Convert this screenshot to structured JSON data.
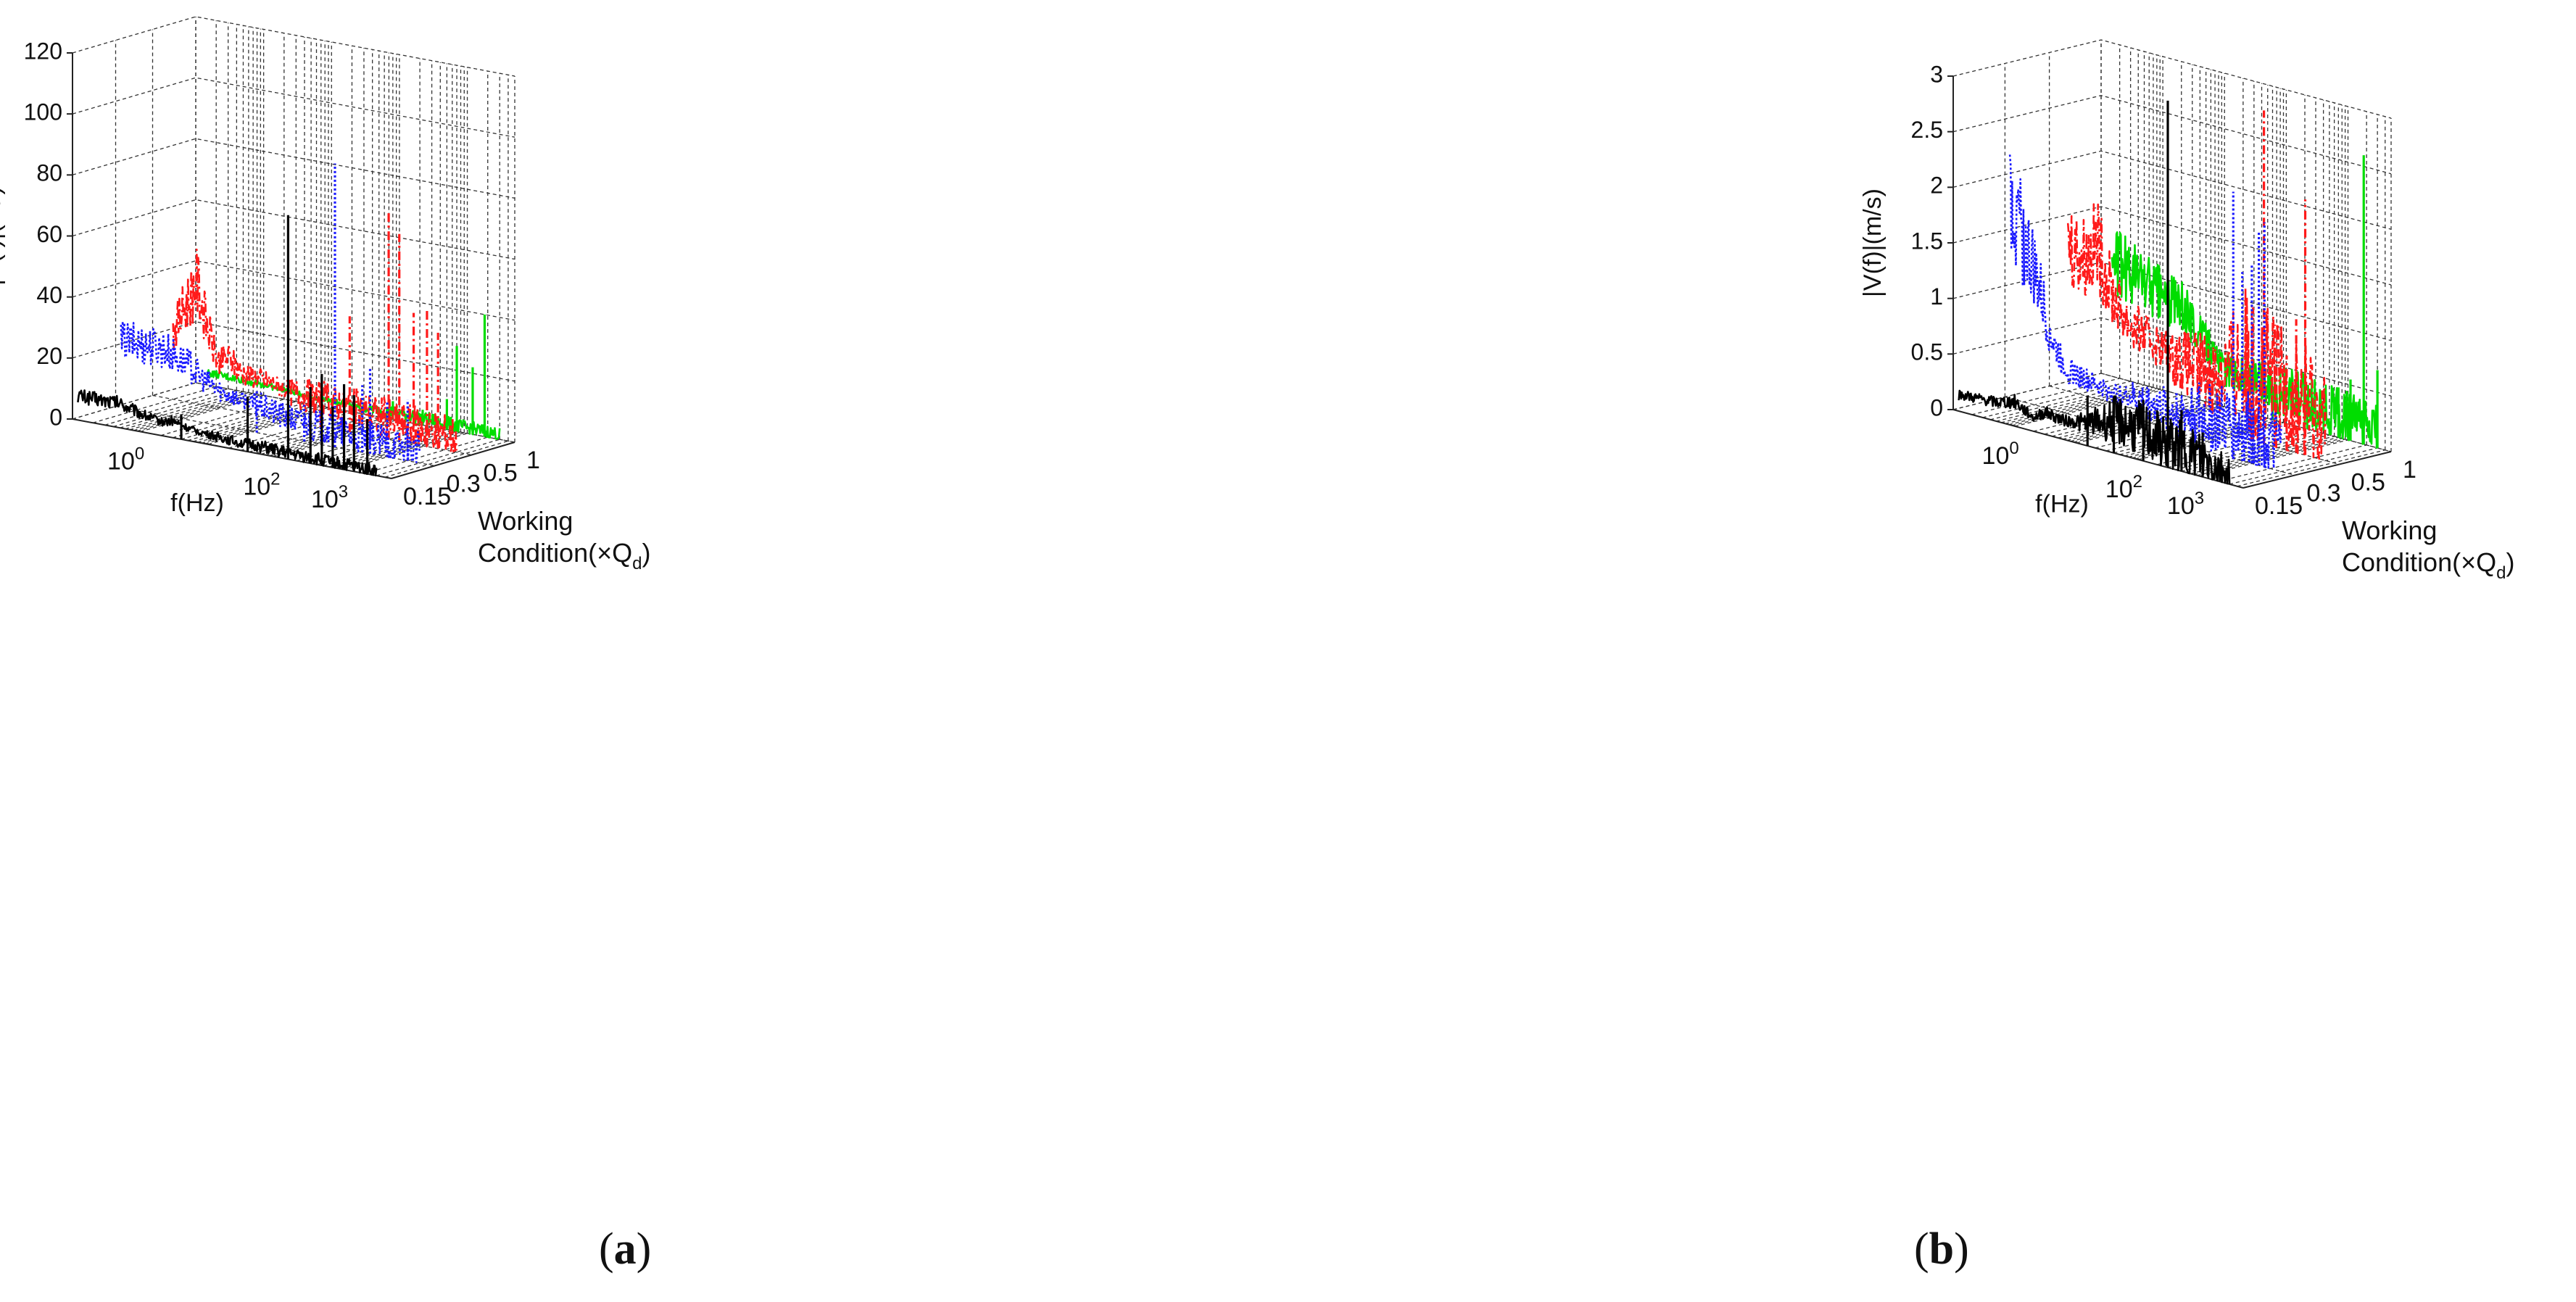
{
  "chart_data": [
    {
      "id": "a",
      "type": "line3d-waterfall",
      "caption": "a",
      "zlabel": "|P(f)|(Pa)",
      "xlabel": "f(Hz)",
      "ylabel": "Working Condition(×Q_d)",
      "ylabel_line1": "Working",
      "ylabel_line2": "Condition(×Q",
      "ylabel_sub": "d",
      "ylabel_close": ")",
      "zlim": [
        0,
        120
      ],
      "zticks": [
        "0",
        "20",
        "40",
        "60",
        "80",
        "100",
        "120"
      ],
      "xscale": "log",
      "xlim": [
        0.1,
        5000
      ],
      "xtick_base": "10",
      "xtick_exps": [
        "0",
        "2",
        "3"
      ],
      "yticks": [
        "0.15",
        "0.3",
        "0.5",
        "1"
      ],
      "series": [
        {
          "name": "0.15",
          "color": "#000000",
          "style": "solid",
          "low": [
            [
              0.12,
              8
            ],
            [
              0.5,
              8
            ],
            [
              1,
              6
            ],
            [
              2,
              4.5
            ],
            [
              3,
              5.5
            ],
            [
              5,
              4
            ],
            [
              8,
              3.5
            ],
            [
              15,
              3
            ],
            [
              30,
              2.5
            ],
            [
              60,
              2.5
            ],
            [
              150,
              2
            ],
            [
              500,
              1.8
            ],
            [
              3000,
              1.5
            ]
          ],
          "peaks": [
            [
              4,
              8
            ],
            [
              38,
              18
            ],
            [
              150,
              80
            ],
            [
              320,
              25
            ],
            [
              470,
              30
            ],
            [
              680,
              20
            ],
            [
              1000,
              28
            ],
            [
              1400,
              25
            ],
            [
              2200,
              18
            ]
          ]
        },
        {
          "name": "0.3",
          "color": "#1a1aff",
          "style": "dotted",
          "low": [
            [
              0.12,
              22
            ],
            [
              0.5,
              22
            ],
            [
              1.2,
              18
            ],
            [
              2,
              14
            ],
            [
              3,
              12
            ],
            [
              6,
              10
            ],
            [
              12,
              9
            ],
            [
              30,
              7
            ],
            [
              80,
              6
            ],
            [
              300,
              5
            ],
            [
              3000,
              4
            ]
          ],
          "peaks": [
            [
              12,
              14
            ],
            [
              60,
              12
            ],
            [
              170,
              93
            ],
            [
              430,
              22
            ],
            [
              560,
              28
            ],
            [
              1000,
              18
            ],
            [
              2000,
              20
            ]
          ]
        },
        {
          "name": "0.5",
          "color": "#ff1a1a",
          "style": "dashdot",
          "low": [
            [
              0.2,
              22
            ],
            [
              0.45,
              40
            ],
            [
              0.6,
              28
            ],
            [
              0.9,
              15
            ],
            [
              1.3,
              17
            ],
            [
              2,
              13
            ],
            [
              4,
              12
            ],
            [
              10,
              10
            ],
            [
              30,
              9
            ],
            [
              100,
              8
            ],
            [
              400,
              6
            ],
            [
              3000,
              5
            ]
          ],
          "peaks": [
            [
              30,
              12
            ],
            [
              80,
              38
            ],
            [
              300,
              75
            ],
            [
              430,
              68
            ],
            [
              700,
              43
            ],
            [
              1100,
              45
            ],
            [
              1600,
              38
            ]
          ]
        },
        {
          "name": "1",
          "color": "#00dd00",
          "style": "solid",
          "low": [
            [
              0.15,
              4
            ],
            [
              1,
              3.5
            ],
            [
              5,
              2.5
            ],
            [
              30,
              2
            ],
            [
              100,
              2.5
            ],
            [
              400,
              2
            ],
            [
              3000,
              1.5
            ]
          ],
          "peaks": [
            [
              80,
              6
            ],
            [
              220,
              5
            ],
            [
              500,
              10
            ],
            [
              700,
              28
            ],
            [
              1200,
              22
            ],
            [
              1800,
              40
            ]
          ]
        }
      ]
    },
    {
      "id": "b",
      "type": "line3d-waterfall",
      "caption": "b",
      "zlabel": "|V(f)|(m/s)",
      "xlabel": "f(Hz)",
      "ylabel": "Working Condition(×Q_d)",
      "ylabel_line1": "Working",
      "ylabel_line2": "Condition(×Q",
      "ylabel_sub": "d",
      "ylabel_close": ")",
      "zlim": [
        0,
        3
      ],
      "zticks": [
        "0",
        "0.5",
        "1",
        "1.5",
        "2",
        "2.5",
        "3"
      ],
      "xscale": "log",
      "xlim": [
        0.1,
        5000
      ],
      "xtick_base": "10",
      "xtick_exps": [
        "0",
        "2",
        "3"
      ],
      "yticks": [
        "0.15",
        "0.3",
        "0.5",
        "1"
      ],
      "series": [
        {
          "name": "0.15",
          "color": "#000000",
          "style": "solid",
          "low": [
            [
              0.12,
              0.15
            ],
            [
              0.5,
              0.17
            ],
            [
              1,
              0.22
            ],
            [
              2,
              0.12
            ],
            [
              3,
              0.2
            ],
            [
              6,
              0.17
            ],
            [
              15,
              0.2
            ],
            [
              40,
              0.3
            ],
            [
              100,
              0.28
            ],
            [
              300,
              0.22
            ],
            [
              1000,
              0.18
            ],
            [
              3000,
              0.1
            ]
          ],
          "peaks": [
            [
              15,
              0.45
            ],
            [
              40,
              0.5
            ],
            [
              120,
              0.55
            ],
            [
              300,
              3.3
            ],
            [
              500,
              0.55
            ],
            [
              1100,
              0.4
            ]
          ]
        },
        {
          "name": "0.3",
          "color": "#1a1aff",
          "style": "dotted",
          "low": [
            [
              0.12,
              1.8
            ],
            [
              0.3,
              1.2
            ],
            [
              0.6,
              0.6
            ],
            [
              1,
              0.4
            ],
            [
              2,
              0.35
            ],
            [
              5,
              0.3
            ],
            [
              15,
              0.3
            ],
            [
              50,
              0.28
            ],
            [
              200,
              0.3
            ],
            [
              800,
              0.28
            ],
            [
              3000,
              0.2
            ]
          ],
          "peaks": [
            [
              60,
              0.45
            ],
            [
              140,
              0.6
            ],
            [
              500,
              2.4
            ],
            [
              700,
              1.7
            ],
            [
              1000,
              1.8
            ],
            [
              1300,
              2.1
            ],
            [
              1600,
              2.2
            ]
          ]
        },
        {
          "name": "0.5",
          "color": "#ff1a1a",
          "style": "dashdot",
          "low": [
            [
              0.2,
              1.35
            ],
            [
              0.4,
              1.25
            ],
            [
              0.6,
              1.4
            ],
            [
              1,
              1.0
            ],
            [
              2,
              0.75
            ],
            [
              5,
              0.65
            ],
            [
              15,
              0.55
            ],
            [
              50,
              0.5
            ],
            [
              150,
              0.7
            ],
            [
              500,
              0.55
            ],
            [
              3000,
              0.35
            ]
          ],
          "peaks": [
            [
              200,
              1.2
            ],
            [
              300,
              3.0
            ],
            [
              450,
              1.1
            ],
            [
              700,
              0.85
            ],
            [
              1000,
              1.2
            ],
            [
              1400,
              2.3
            ]
          ]
        },
        {
          "name": "1",
          "color": "#00dd00",
          "style": "solid",
          "low": [
            [
              0.15,
              1.05
            ],
            [
              0.5,
              0.95
            ],
            [
              1,
              0.85
            ],
            [
              2,
              0.8
            ],
            [
              4,
              0.6
            ],
            [
              10,
              0.35
            ],
            [
              40,
              0.3
            ],
            [
              150,
              0.25
            ],
            [
              600,
              0.2
            ],
            [
              3000,
              0.15
            ]
          ],
          "peaks": [
            [
              60,
              0.3
            ],
            [
              200,
              0.4
            ],
            [
              700,
              0.45
            ],
            [
              1100,
              0.55
            ],
            [
              1800,
              2.6
            ],
            [
              3000,
              0.7
            ]
          ]
        }
      ]
    }
  ]
}
